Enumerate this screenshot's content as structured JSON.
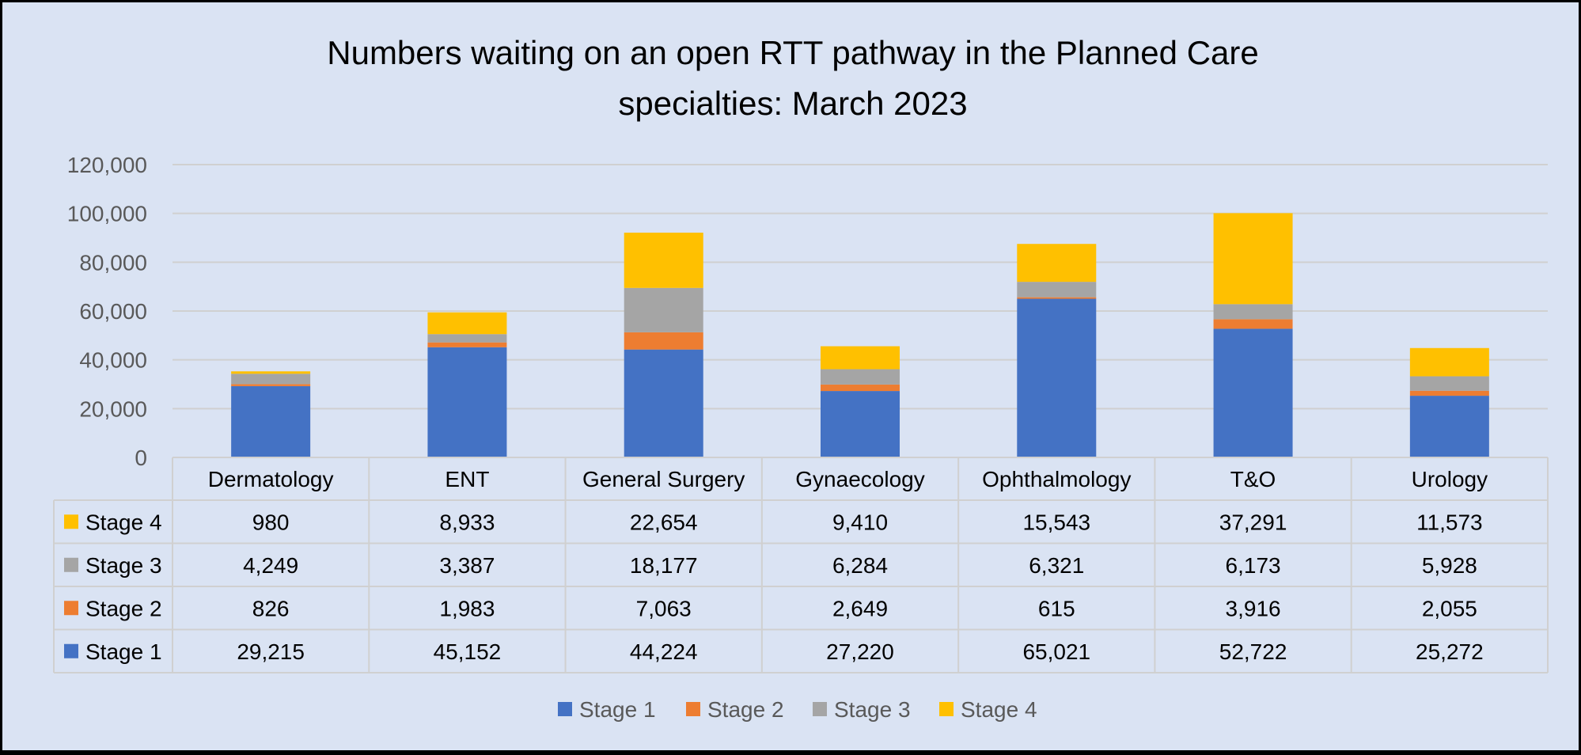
{
  "chart_data": {
    "type": "bar",
    "stacked": true,
    "title": "Numbers waiting on an open RTT pathway in the Planned Care specialties: March 2023",
    "title_lines": [
      "Numbers waiting on an open RTT pathway in the Planned Care",
      "specialties: March 2023"
    ],
    "categories": [
      "Dermatology",
      "ENT",
      "General Surgery",
      "Gynaecology",
      "Ophthalmology",
      "T&O",
      "Urology"
    ],
    "series": [
      {
        "name": "Stage 1",
        "color": "#4472c4",
        "values": [
          29215,
          45152,
          44224,
          27220,
          65021,
          52722,
          25272
        ],
        "labels": [
          "29,215",
          "45,152",
          "44,224",
          "27,220",
          "65,021",
          "52,722",
          "25,272"
        ]
      },
      {
        "name": "Stage 2",
        "color": "#ed7d31",
        "values": [
          826,
          1983,
          7063,
          2649,
          615,
          3916,
          2055
        ],
        "labels": [
          "826",
          "1,983",
          "7,063",
          "2,649",
          "615",
          "3,916",
          "2,055"
        ]
      },
      {
        "name": "Stage 3",
        "color": "#a5a5a5",
        "values": [
          4249,
          3387,
          18177,
          6284,
          6321,
          6173,
          5928
        ],
        "labels": [
          "4,249",
          "3,387",
          "18,177",
          "6,284",
          "6,321",
          "6,173",
          "5,928"
        ]
      },
      {
        "name": "Stage 4",
        "color": "#ffc000",
        "values": [
          980,
          8933,
          22654,
          9410,
          15543,
          37291,
          11573
        ],
        "labels": [
          "980",
          "8,933",
          "22,654",
          "9,410",
          "15,543",
          "37,291",
          "11,573"
        ]
      }
    ],
    "ylim": [
      0,
      120000
    ],
    "y_ticks": [
      0,
      20000,
      40000,
      60000,
      80000,
      100000,
      120000
    ],
    "y_tick_labels": [
      "0",
      "20,000",
      "40,000",
      "60,000",
      "80,000",
      "100,000",
      "120,000"
    ],
    "xlabel": "",
    "ylabel": "",
    "grid": true,
    "data_table": true,
    "legend_position": "bottom"
  },
  "colors": {
    "background": "#dae3f3",
    "border": "#000000",
    "gridline": "#d0d0d0"
  }
}
